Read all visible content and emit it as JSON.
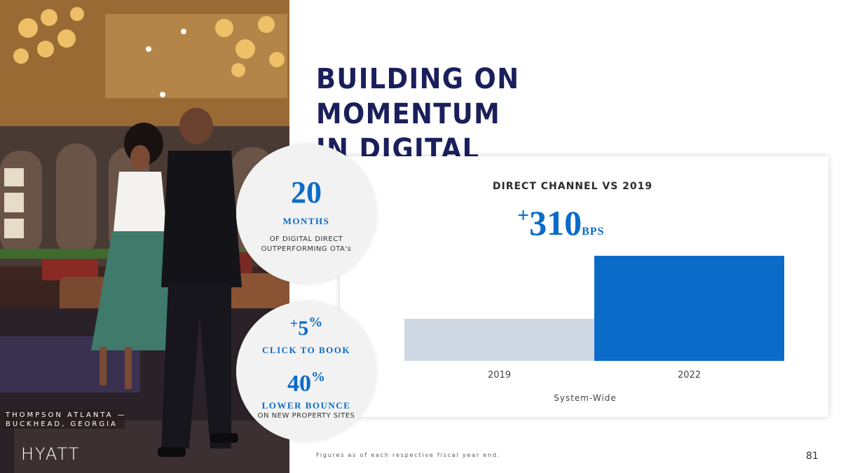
{
  "photo": {
    "caption_line1": "THOMPSON ATLANTA —",
    "caption_line2": "BUCKHEAD, GEORGIA",
    "logo": "HYATT"
  },
  "title": {
    "line1": "BUILDING ON MOMENTUM",
    "line2": "IN DIGITAL"
  },
  "stats": {
    "months": {
      "value": "20",
      "label": "MONTHS",
      "desc_line1": "OF DIGITAL DIRECT",
      "desc_line2": "OUTPERFORMING OTA's"
    },
    "click": {
      "plus": "+",
      "value": "5",
      "percent": "%",
      "label": "CLICK TO BOOK"
    },
    "bounce": {
      "value": "40",
      "percent": "%",
      "label": "LOWER BOUNCE",
      "desc": "ON NEW PROPERTY SITES"
    }
  },
  "chart_data": {
    "type": "bar",
    "title": "DIRECT CHANNEL VS 2019",
    "headline": {
      "plus": "+",
      "value": "310",
      "unit": "BPS"
    },
    "categories": [
      "2019",
      "2022"
    ],
    "values": [
      40,
      100
    ],
    "value_scale": "relative (no y-axis printed)",
    "xlabel": "System-Wide",
    "ylabel": "",
    "colors": [
      "#cfd8e2",
      "#0a6bc9"
    ],
    "grid": false
  },
  "footer": {
    "note": "Figures as of each respective fiscal year end.",
    "page": "81"
  },
  "colors": {
    "navy": "#1a1f5c",
    "blue": "#0a6bc9",
    "light_bar": "#cfd8e2"
  }
}
